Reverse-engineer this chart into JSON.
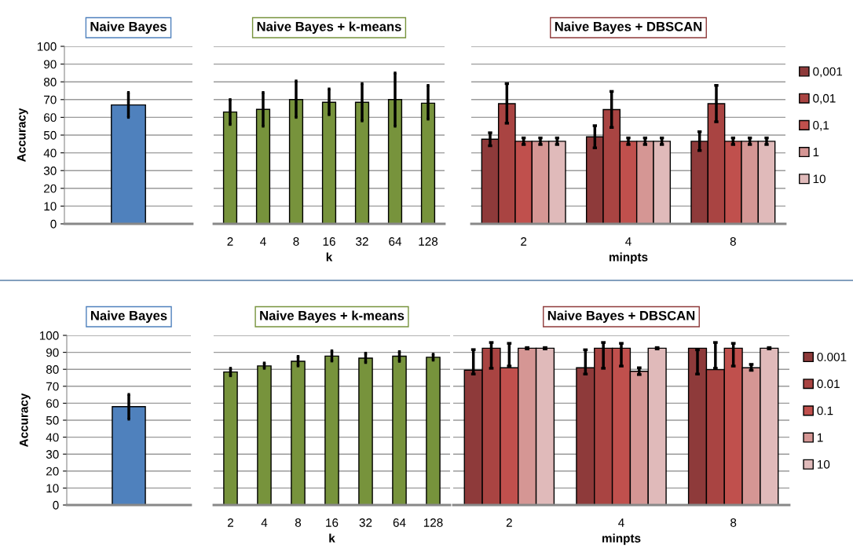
{
  "chart_data": [
    {
      "type": "bar",
      "title": "Naive Bayes",
      "ylabel": "Accuracy",
      "categories": [
        null
      ],
      "series": [
        {
          "color": "#4f81bd",
          "values": [
            67
          ],
          "errors": [
            [
              60,
              74
            ]
          ]
        }
      ],
      "ylim": [
        0,
        100
      ],
      "yticks": [
        0,
        10,
        20,
        30,
        40,
        50,
        60,
        70,
        80,
        90,
        100
      ],
      "grid": "y",
      "tick_labels": "y"
    },
    {
      "type": "bar",
      "title": "Naive Bayes + k-means",
      "xlabel": "k",
      "categories": [
        "2",
        "4",
        "8",
        "16",
        "32",
        "64",
        "128"
      ],
      "series": [
        {
          "color": "#77933c",
          "values": [
            63,
            64.5,
            70,
            68.5,
            68.5,
            70,
            68
          ],
          "errors": [
            [
              56,
              70
            ],
            [
              55,
              74
            ],
            [
              60,
              80.5
            ],
            [
              61.5,
              76
            ],
            [
              58,
              79
            ],
            [
              55,
              85
            ],
            [
              59,
              78
            ]
          ]
        }
      ],
      "ylim": [
        0,
        100
      ],
      "grid": "y",
      "tick_labels": "x"
    },
    {
      "type": "bar",
      "title": "Naive Bayes + DBSCAN",
      "xlabel": "minpts",
      "categories": [
        "2",
        "4",
        "8"
      ],
      "series": [
        {
          "name": "0,001",
          "color": "#8e3a3a",
          "values": [
            47.7,
            49,
            46.5
          ],
          "errors": [
            [
              44,
              51.3
            ],
            [
              42.8,
              55.3
            ],
            [
              41.3,
              51.9
            ]
          ]
        },
        {
          "name": "0,01",
          "color": "#a94442",
          "values": [
            67.7,
            64.4,
            67.7
          ],
          "errors": [
            [
              56.7,
              79
            ],
            [
              54.3,
              74.6
            ],
            [
              57.5,
              78
            ]
          ]
        },
        {
          "name": "0,1",
          "color": "#c0504d",
          "values": [
            46.5,
            46.5,
            46.5
          ],
          "errors": [
            [
              44.7,
              48.4
            ],
            [
              44.7,
              48.4
            ],
            [
              44.7,
              48.4
            ]
          ]
        },
        {
          "name": "1",
          "color": "#d59694",
          "values": [
            46.5,
            46.5,
            46.5
          ],
          "errors": [
            [
              44.7,
              48.4
            ],
            [
              44.7,
              48.4
            ],
            [
              44.7,
              48.4
            ]
          ]
        },
        {
          "name": "10",
          "color": "#e0baba",
          "values": [
            46.5,
            46.5,
            46.5
          ],
          "errors": [
            [
              44.7,
              48.4
            ],
            [
              44.7,
              48.4
            ],
            [
              44.7,
              48.4
            ]
          ]
        }
      ],
      "ylim": [
        0,
        100
      ],
      "grid": "y",
      "legend": "right",
      "tick_labels": "x"
    },
    {
      "type": "bar",
      "title": "Naive Bayes",
      "ylabel": "Accuracy",
      "categories": [
        null
      ],
      "series": [
        {
          "color": "#4f81bd",
          "values": [
            58
          ],
          "errors": [
            [
              50.6,
              65.2
            ]
          ]
        }
      ],
      "ylim": [
        0,
        100
      ],
      "yticks": [
        0,
        10,
        20,
        30,
        40,
        50,
        60,
        70,
        80,
        90,
        100
      ],
      "grid": "y",
      "tick_labels": "y"
    },
    {
      "type": "bar",
      "title": "Naive Bayes + k-means",
      "xlabel": "k",
      "categories": [
        "2",
        "4",
        "8",
        "16",
        "32",
        "64",
        "128"
      ],
      "series": [
        {
          "color": "#77933c",
          "values": [
            78.4,
            82,
            84.7,
            87.8,
            86.6,
            87.7,
            87.1
          ],
          "errors": [
            [
              76.2,
              80.6
            ],
            [
              80.6,
              83.7
            ],
            [
              82,
              87.6
            ],
            [
              84.9,
              90.9
            ],
            [
              84,
              89.5
            ],
            [
              84.7,
              90.4
            ],
            [
              85.4,
              88.9
            ]
          ]
        }
      ],
      "ylim": [
        0,
        100
      ],
      "grid": "y",
      "tick_labels": "x"
    },
    {
      "type": "bar",
      "title": "Naive Bayes + DBSCAN",
      "xlabel": "minpts",
      "categories": [
        "2",
        "4",
        "8"
      ],
      "series": [
        {
          "name": "0.001",
          "color": "#8e3a3a",
          "values": [
            79.5,
            80.9,
            92.4
          ],
          "errors": [
            [
              77.2,
              91.6
            ],
            [
              77.2,
              91.5
            ],
            [
              77.2,
              91.5
            ]
          ]
        },
        {
          "name": "0.01",
          "color": "#a94442",
          "values": [
            92.4,
            92.4,
            79.8
          ],
          "errors": [
            [
              80.6,
              95.8
            ],
            [
              80.6,
              95.8
            ],
            [
              80.6,
              95.8
            ]
          ]
        },
        {
          "name": "0.1",
          "color": "#c0504d",
          "values": [
            80.9,
            92.4,
            92.4
          ],
          "errors": [
            [
              81.9,
              95.3
            ],
            [
              81.9,
              95.3
            ],
            [
              81.9,
              95.3
            ]
          ]
        },
        {
          "name": "1",
          "color": "#d59694",
          "values": [
            92.4,
            78.8,
            80.9
          ],
          "errors": [
            [
              92,
              92.8
            ],
            [
              76.9,
              80.9
            ],
            [
              79.4,
              82.9
            ]
          ]
        },
        {
          "name": "10",
          "color": "#e0baba",
          "values": [
            92.4,
            92.4,
            92.4
          ],
          "errors": [
            [
              92,
              92.8
            ],
            [
              92,
              92.8
            ],
            [
              92,
              92.8
            ]
          ]
        }
      ],
      "ylim": [
        0,
        100
      ],
      "grid": "y",
      "legend": "right",
      "tick_labels": "x"
    }
  ]
}
